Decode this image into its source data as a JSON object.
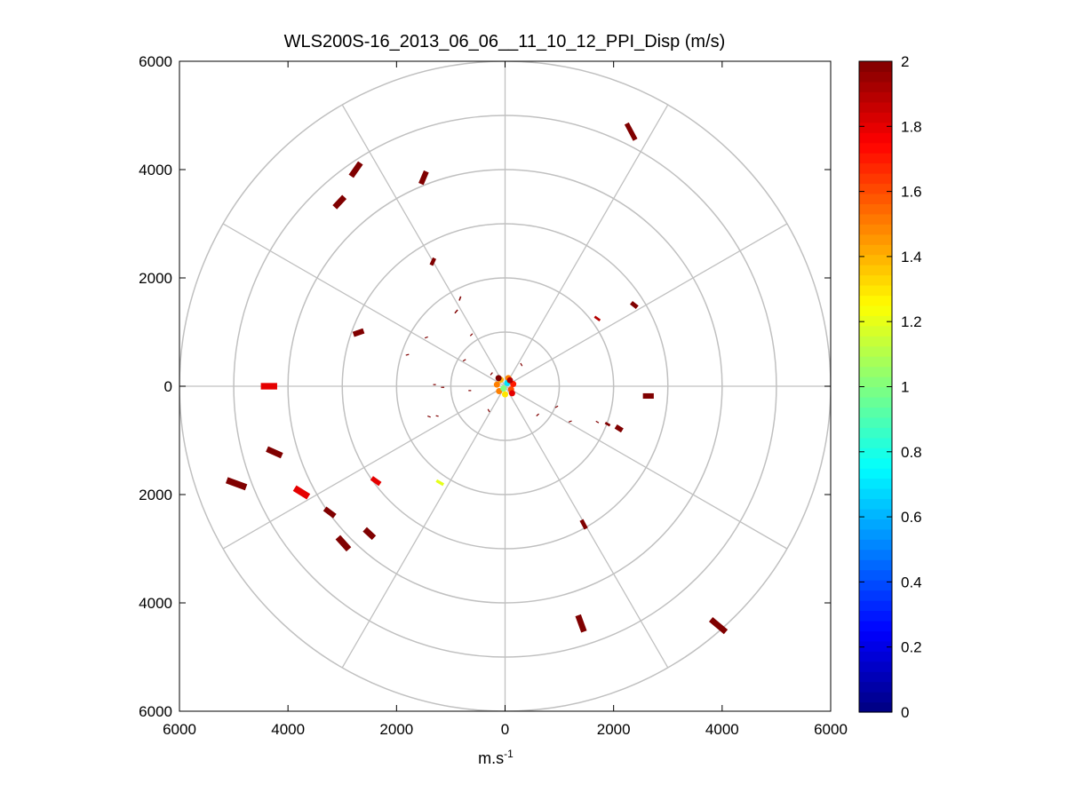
{
  "chart_data": {
    "type": "scatter",
    "subtype": "polar-ppi",
    "title": "WLS200S-16_2013_06_06__11_10_12_PPI_Disp (m/s)",
    "xlabel": "m.s",
    "xlabel_superscript": "-1",
    "ylabel": "",
    "xlim": [
      -6000,
      6000
    ],
    "ylim": [
      -6000,
      6000
    ],
    "x_tick_values": [
      -6000,
      -4000,
      -2000,
      0,
      2000,
      4000,
      6000
    ],
    "x_tick_labels": [
      "6000",
      "4000",
      "2000",
      "0",
      "2000",
      "4000",
      "6000"
    ],
    "y_tick_values": [
      6000,
      4000,
      2000,
      0,
      -2000,
      -4000,
      -6000
    ],
    "y_tick_labels": [
      "6000",
      "4000",
      "2000",
      "0",
      "2000",
      "4000",
      "6000"
    ],
    "polar_grid": {
      "ring_radii": [
        1000,
        2000,
        3000,
        4000,
        5000,
        6000
      ],
      "spoke_angles_deg": [
        0,
        30,
        60,
        90,
        120,
        150,
        180,
        210,
        240,
        270,
        300,
        330
      ]
    },
    "grid": true,
    "colorbar": {
      "min": 0,
      "max": 2,
      "tick_values": [
        0,
        0.2,
        0.4,
        0.6,
        0.8,
        1,
        1.2,
        1.4,
        1.6,
        1.8,
        2
      ],
      "tick_labels": [
        "0",
        "0.2",
        "0.4",
        "0.6",
        "0.8",
        "1",
        "1.2",
        "1.4",
        "1.6",
        "1.8",
        "2"
      ],
      "colormap": "jet",
      "placement": "right"
    },
    "series": [
      {
        "name": "range gates (x, y, length, width, angle_deg, value)",
        "points": [
          [
            2320,
            4700,
            340,
            90,
            -28,
            2
          ],
          [
            -2750,
            4000,
            300,
            110,
            35,
            2
          ],
          [
            -1500,
            3850,
            250,
            100,
            23,
            2
          ],
          [
            -3050,
            3400,
            260,
            110,
            43,
            2
          ],
          [
            -1330,
            2300,
            140,
            70,
            25,
            2
          ],
          [
            2380,
            1500,
            140,
            80,
            -52,
            2
          ],
          [
            1700,
            1250,
            120,
            45,
            -55,
            1.9
          ],
          [
            -2700,
            990,
            200,
            100,
            71,
            2
          ],
          [
            -830,
            1620,
            80,
            25,
            20,
            2
          ],
          [
            -900,
            1380,
            80,
            25,
            40,
            2
          ],
          [
            -4350,
            0,
            300,
            120,
            90,
            1.8
          ],
          [
            2640,
            -180,
            200,
            100,
            90,
            2
          ],
          [
            -4250,
            -1220,
            300,
            110,
            114,
            2
          ],
          [
            2100,
            -780,
            140,
            90,
            -58,
            2
          ],
          [
            1890,
            -700,
            100,
            45,
            -60,
            2
          ],
          [
            -4950,
            -1800,
            380,
            120,
            110,
            2
          ],
          [
            -3750,
            -1960,
            300,
            120,
            122,
            1.8
          ],
          [
            -2380,
            -1750,
            190,
            90,
            125,
            1.8
          ],
          [
            -1200,
            -1780,
            150,
            55,
            120,
            1.2
          ],
          [
            -3230,
            -2330,
            230,
            100,
            127,
            2
          ],
          [
            -2500,
            -2720,
            230,
            110,
            133,
            2
          ],
          [
            -2980,
            -2900,
            300,
            120,
            138,
            2
          ],
          [
            1450,
            -2550,
            180,
            75,
            -28,
            2
          ],
          [
            1400,
            -4380,
            320,
            110,
            -20,
            2
          ],
          [
            3930,
            -4420,
            360,
            110,
            -50,
            2
          ],
          [
            -1800,
            580,
            60,
            20,
            75,
            2
          ],
          [
            -1450,
            900,
            60,
            20,
            70,
            2
          ],
          [
            -1400,
            -560,
            60,
            20,
            110,
            2
          ],
          [
            -1250,
            -550,
            50,
            20,
            100,
            2
          ],
          [
            -1150,
            -20,
            60,
            20,
            90,
            2
          ],
          [
            -1300,
            30,
            50,
            20,
            90,
            2
          ],
          [
            -750,
            480,
            60,
            20,
            60,
            2
          ],
          [
            -620,
            950,
            60,
            20,
            45,
            2
          ],
          [
            1200,
            -650,
            60,
            20,
            -110,
            2
          ],
          [
            950,
            -380,
            60,
            20,
            -120,
            2
          ],
          [
            -300,
            -450,
            60,
            20,
            150,
            2
          ],
          [
            600,
            -530,
            60,
            20,
            -130,
            2
          ],
          [
            -250,
            230,
            60,
            20,
            40,
            2
          ],
          [
            300,
            400,
            60,
            20,
            -30,
            2
          ],
          [
            1700,
            -660,
            60,
            20,
            -60,
            2
          ],
          [
            -650,
            -80,
            50,
            20,
            90,
            2
          ]
        ]
      },
      {
        "name": "near-field cluster (x, y, value)",
        "points": [
          [
            60,
            150,
            1.5
          ],
          [
            -80,
            120,
            1.4
          ],
          [
            110,
            -60,
            1.6
          ],
          [
            -110,
            -90,
            1.5
          ],
          [
            0,
            -150,
            1.3
          ],
          [
            150,
            40,
            1.7
          ],
          [
            -150,
            30,
            1.5
          ],
          [
            40,
            60,
            0.7
          ],
          [
            -30,
            -40,
            1.0
          ],
          [
            90,
            110,
            1.9
          ],
          [
            -120,
            150,
            2
          ],
          [
            130,
            -130,
            1.8
          ]
        ]
      }
    ]
  }
}
